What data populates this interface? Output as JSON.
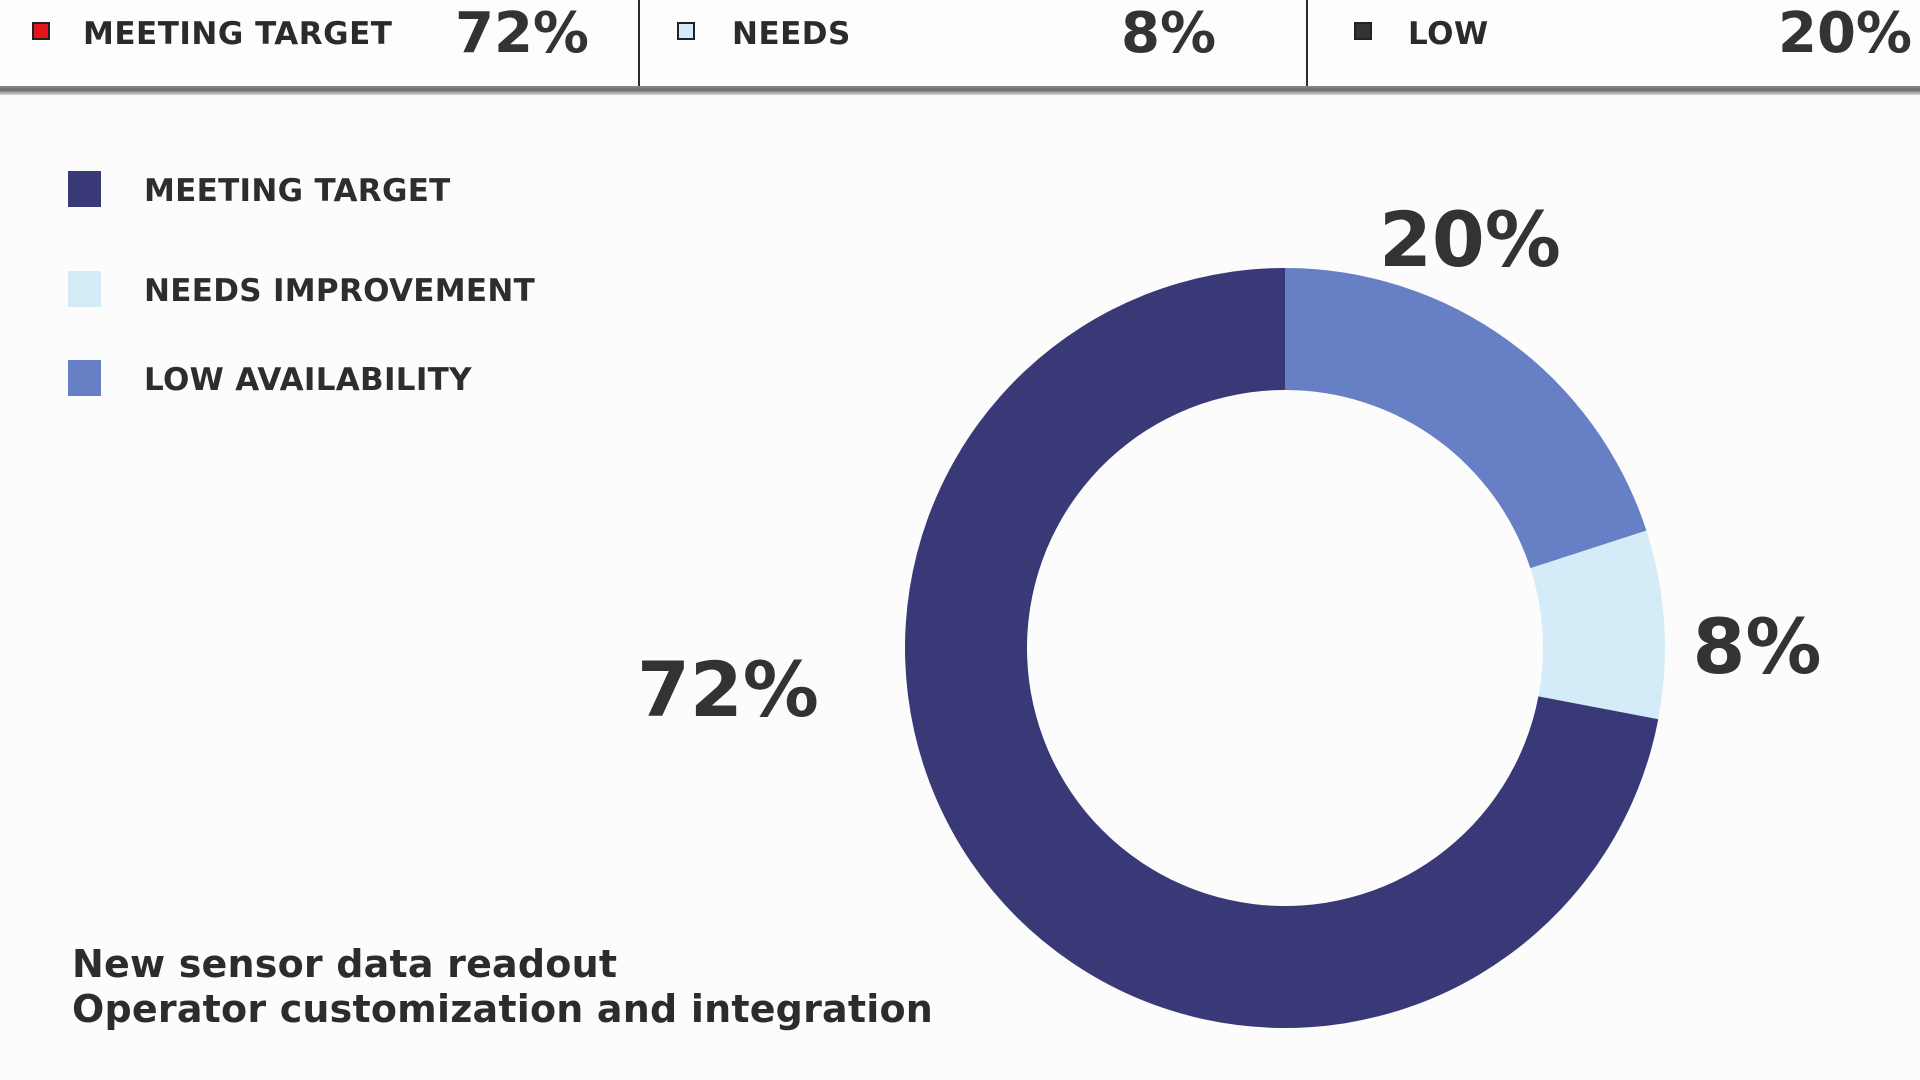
{
  "status_bar": {
    "cells": [
      {
        "label": "MEETING TARGET",
        "value": "72%",
        "swatch_color": "#e4161b"
      },
      {
        "label": "NEEDS",
        "value": "8%",
        "swatch_color": "#d3ecf7"
      },
      {
        "label": "LOW",
        "value": "20%",
        "swatch_color": "#333333"
      }
    ]
  },
  "legend": {
    "items": [
      {
        "label": "MEETING TARGET",
        "color": "#3a3978"
      },
      {
        "label": "NEEDS IMPROVEMENT",
        "color": "#d3ecf7"
      },
      {
        "label": "LOW AVAILABILITY",
        "color": "#6780c5"
      }
    ]
  },
  "chart_data": {
    "type": "pie",
    "variant": "donut",
    "categories": [
      "LOW AVAILABILITY",
      "NEEDS IMPROVEMENT",
      "MEETING TARGET"
    ],
    "values": [
      20,
      8,
      72
    ],
    "data_labels": [
      "20%",
      "8%",
      "72%"
    ],
    "colors": [
      "#6780c5",
      "#d3ecf7",
      "#3a3978"
    ],
    "start": "12 o'clock",
    "direction": "clockwise",
    "legend_position": "top-left"
  },
  "caption": {
    "line1": "New sensor data readout",
    "line2": "Operator customization and integration"
  }
}
